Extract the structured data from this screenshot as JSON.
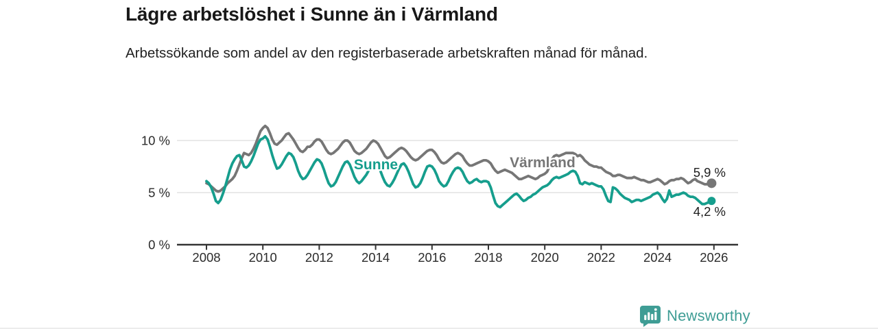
{
  "title": "Lägre arbetslöshet i Sunne än i Värmland",
  "subtitle": "Arbetssökande som andel av den registerbaserade arbetskraften månad för månad.",
  "footer": {
    "brand": "Newsworthy"
  },
  "colors": {
    "sunne": "#169e8d",
    "varmland": "#767676",
    "grid": "#dcdcdc",
    "axis": "#333333",
    "label_text": "#1d1d1d",
    "brand": "#3f9d95"
  },
  "chart_data": {
    "type": "line",
    "title": "Lägre arbetslöshet i Sunne än i Värmland",
    "subtitle": "Arbetssökande som andel av den registerbaserade arbetskraften månad för månad.",
    "x_unit": "month",
    "x_start": "2008-01",
    "x_end": "2025-12",
    "xlim": [
      2006.95,
      2026.85
    ],
    "ylim": [
      0,
      11.8
    ],
    "grid": "horizontal",
    "legend_position": "inline-labels",
    "y_ticks": [
      {
        "value": 0,
        "label": "0 %"
      },
      {
        "value": 5,
        "label": "5 %"
      },
      {
        "value": 10,
        "label": "10 %"
      }
    ],
    "x_ticks": [
      {
        "year": 2008,
        "label": "2008"
      },
      {
        "year": 2010,
        "label": "2010"
      },
      {
        "year": 2012,
        "label": "2012"
      },
      {
        "year": 2014,
        "label": "2014"
      },
      {
        "year": 2016,
        "label": "2016"
      },
      {
        "year": 2018,
        "label": "2018"
      },
      {
        "year": 2020,
        "label": "2020"
      },
      {
        "year": 2022,
        "label": "2022"
      },
      {
        "year": 2024,
        "label": "2024"
      },
      {
        "year": 2026,
        "label": "2026"
      }
    ],
    "series": [
      {
        "name": "Värmland",
        "color": "#767676",
        "end_label": "5,9 %",
        "end_value": 5.9,
        "values": [
          5.9,
          5.8,
          5.6,
          5.4,
          5.2,
          5.1,
          5.2,
          5.4,
          5.6,
          5.9,
          6.1,
          6.3,
          6.6,
          7.1,
          7.7,
          8.3,
          8.8,
          8.7,
          8.6,
          8.8,
          9.2,
          9.7,
          10.3,
          10.9,
          11.2,
          11.4,
          11.2,
          10.7,
          10.1,
          9.7,
          9.6,
          9.8,
          10.0,
          10.3,
          10.6,
          10.7,
          10.4,
          10.1,
          9.7,
          9.3,
          9.0,
          8.9,
          9.1,
          9.4,
          9.4,
          9.6,
          9.9,
          10.1,
          10.1,
          9.9,
          9.5,
          9.1,
          8.8,
          8.7,
          8.8,
          9.0,
          9.2,
          9.5,
          9.8,
          10.0,
          10.0,
          9.8,
          9.4,
          9.0,
          8.8,
          8.7,
          8.8,
          9.0,
          9.2,
          9.5,
          9.8,
          10.0,
          9.9,
          9.7,
          9.3,
          8.9,
          8.5,
          8.3,
          8.4,
          8.6,
          8.8,
          9.0,
          9.2,
          9.3,
          9.2,
          9.0,
          8.7,
          8.4,
          8.2,
          8.1,
          8.2,
          8.4,
          8.6,
          8.8,
          9.0,
          9.1,
          9.1,
          8.9,
          8.6,
          8.2,
          7.9,
          7.8,
          7.9,
          8.1,
          8.3,
          8.5,
          8.7,
          8.8,
          8.7,
          8.5,
          8.1,
          7.8,
          7.6,
          7.6,
          7.7,
          7.8,
          7.9,
          8.0,
          8.1,
          8.1,
          8.0,
          7.8,
          7.4,
          7.1,
          6.9,
          7.0,
          7.1,
          7.2,
          7.1,
          7.0,
          6.9,
          6.7,
          6.5,
          6.3,
          6.3,
          6.4,
          6.5,
          6.6,
          6.5,
          6.4,
          6.3,
          6.4,
          6.6,
          6.7,
          6.8,
          7.0,
          7.5,
          8.2,
          8.5,
          8.6,
          8.5,
          8.6,
          8.7,
          8.8,
          8.8,
          8.8,
          8.8,
          8.7,
          8.5,
          8.6,
          8.4,
          8.1,
          7.9,
          7.7,
          7.6,
          7.5,
          7.5,
          7.4,
          7.4,
          7.2,
          7.0,
          6.9,
          6.8,
          6.6,
          6.6,
          6.7,
          6.7,
          6.6,
          6.5,
          6.4,
          6.4,
          6.4,
          6.5,
          6.4,
          6.3,
          6.2,
          6.2,
          6.1,
          6.0,
          6.0,
          6.1,
          6.2,
          6.3,
          6.2,
          6.0,
          5.8,
          5.9,
          6.1,
          6.2,
          6.2,
          6.3,
          6.3,
          6.4,
          6.3,
          6.1,
          5.9,
          6.0,
          6.2,
          6.3,
          6.1,
          6.0,
          5.9,
          5.8,
          5.8,
          5.9,
          5.9
        ]
      },
      {
        "name": "Sunne",
        "color": "#169e8d",
        "end_label": "4,2 %",
        "end_value": 4.2,
        "values": [
          6.1,
          5.9,
          5.5,
          4.9,
          4.2,
          4.0,
          4.3,
          4.9,
          5.6,
          6.4,
          7.2,
          7.8,
          8.2,
          8.5,
          8.6,
          8.1,
          7.5,
          7.4,
          7.6,
          8.0,
          8.5,
          9.1,
          9.7,
          10.1,
          10.2,
          10.4,
          10.1,
          9.4,
          8.6,
          7.9,
          7.3,
          7.4,
          7.7,
          8.1,
          8.5,
          8.8,
          8.7,
          8.4,
          7.8,
          7.1,
          6.6,
          6.3,
          6.4,
          6.7,
          7.1,
          7.5,
          7.9,
          8.2,
          8.1,
          7.8,
          7.2,
          6.5,
          5.9,
          5.6,
          5.7,
          6.0,
          6.5,
          7.0,
          7.5,
          7.9,
          8.0,
          7.7,
          7.1,
          6.5,
          6.1,
          5.9,
          6.1,
          6.4,
          6.7,
          7.1,
          7.5,
          7.8,
          7.8,
          7.6,
          7.1,
          6.5,
          6.0,
          5.7,
          5.6,
          5.9,
          6.3,
          6.8,
          7.3,
          7.7,
          7.8,
          7.5,
          7.0,
          6.4,
          5.8,
          5.5,
          5.6,
          5.9,
          6.4,
          7.0,
          7.5,
          7.6,
          7.5,
          7.2,
          6.7,
          6.1,
          5.8,
          5.6,
          5.7,
          6.1,
          6.6,
          7.0,
          7.3,
          7.4,
          7.3,
          7.0,
          6.5,
          6.1,
          5.9,
          6.0,
          6.2,
          6.3,
          6.1,
          6.0,
          6.1,
          6.1,
          6.0,
          5.5,
          4.7,
          4.0,
          3.7,
          3.6,
          3.8,
          4.0,
          4.2,
          4.4,
          4.6,
          4.8,
          4.9,
          4.7,
          4.4,
          4.2,
          4.3,
          4.5,
          4.6,
          4.8,
          4.9,
          5.1,
          5.3,
          5.5,
          5.6,
          5.7,
          5.9,
          6.2,
          6.4,
          6.5,
          6.4,
          6.5,
          6.6,
          6.7,
          6.8,
          7.0,
          7.1,
          7.0,
          6.6,
          5.9,
          5.8,
          6.0,
          5.9,
          5.8,
          5.9,
          5.8,
          5.7,
          5.6,
          5.6,
          5.3,
          4.7,
          4.2,
          4.1,
          5.5,
          5.4,
          5.2,
          4.9,
          4.7,
          4.5,
          4.4,
          4.3,
          4.1,
          4.2,
          4.3,
          4.3,
          4.2,
          4.3,
          4.4,
          4.5,
          4.6,
          4.8,
          4.9,
          5.0,
          4.8,
          4.4,
          4.1,
          4.4,
          5.2,
          4.6,
          4.7,
          4.8,
          4.8,
          4.9,
          5.0,
          4.9,
          4.7,
          4.6,
          4.6,
          4.5,
          4.3,
          4.1,
          3.9,
          3.9,
          4.0,
          4.1,
          4.2
        ]
      }
    ]
  }
}
